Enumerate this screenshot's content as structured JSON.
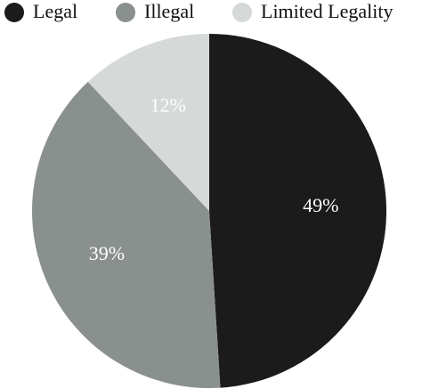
{
  "chart_data": {
    "type": "pie",
    "categories": [
      "Legal",
      "Illegal",
      "Limited Legality"
    ],
    "values": [
      49,
      39,
      12
    ],
    "value_labels": [
      "49%",
      "39%",
      "12%"
    ],
    "colors": [
      "#1b1b1b",
      "#8a908e",
      "#d5d9d8"
    ],
    "legend": "top"
  }
}
